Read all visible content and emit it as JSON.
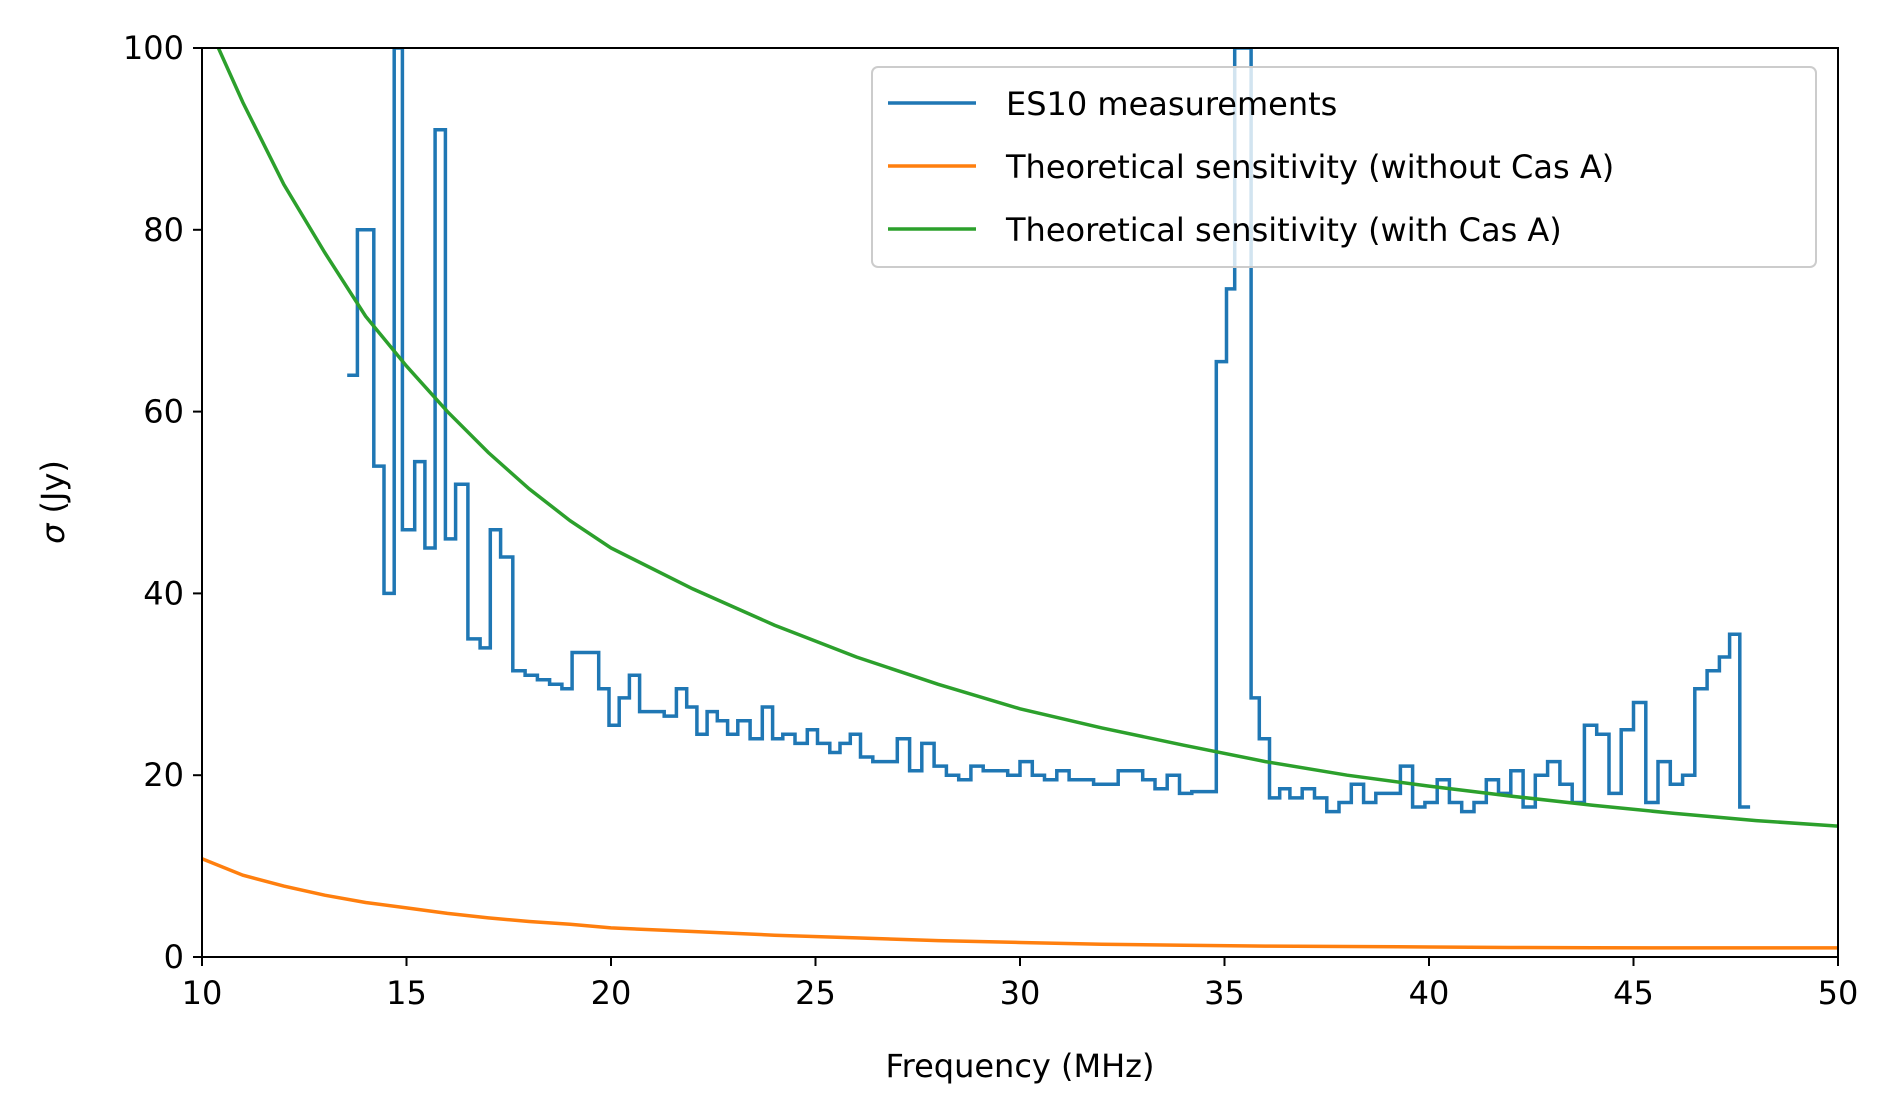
{
  "chart_data": {
    "type": "line",
    "xlabel": "Frequency (MHz)",
    "ylabel_symbol": "σ",
    "ylabel_unit": " (Jy)",
    "xlim": [
      10,
      50
    ],
    "ylim": [
      0,
      100
    ],
    "xticks": [
      10,
      15,
      20,
      25,
      30,
      35,
      40,
      45,
      50
    ],
    "xtick_labels": [
      "10",
      "15",
      "20",
      "25",
      "30",
      "35",
      "40",
      "45",
      "50"
    ],
    "yticks": [
      0,
      20,
      40,
      60,
      80,
      100
    ],
    "ytick_labels": [
      "0",
      "20",
      "40",
      "60",
      "80",
      "100"
    ],
    "grid": false,
    "legend_position": "top-right",
    "series": [
      {
        "name": "ES10 measurements",
        "color": "#1f77b4",
        "style": "step",
        "x": [
          13.55,
          13.8,
          14.2,
          14.45,
          14.7,
          14.9,
          15.2,
          15.45,
          15.7,
          15.95,
          16.2,
          16.5,
          16.8,
          17.05,
          17.3,
          17.6,
          17.9,
          18.2,
          18.5,
          18.8,
          19.05,
          19.35,
          19.7,
          19.95,
          20.2,
          20.45,
          20.7,
          21.0,
          21.3,
          21.6,
          21.85,
          22.1,
          22.35,
          22.6,
          22.85,
          23.1,
          23.4,
          23.7,
          23.95,
          24.2,
          24.5,
          24.8,
          25.05,
          25.35,
          25.6,
          25.85,
          26.1,
          26.4,
          26.7,
          27.0,
          27.3,
          27.6,
          27.9,
          28.2,
          28.5,
          28.8,
          29.1,
          29.4,
          29.7,
          30.0,
          30.3,
          30.6,
          30.9,
          31.2,
          31.5,
          31.8,
          32.1,
          32.4,
          32.7,
          33.0,
          33.3,
          33.6,
          33.9,
          34.2,
          34.5,
          34.8,
          35.05,
          35.25,
          35.45,
          35.65,
          35.85,
          36.1,
          36.35,
          36.6,
          36.9,
          37.2,
          37.5,
          37.8,
          38.1,
          38.4,
          38.7,
          39.0,
          39.3,
          39.6,
          39.9,
          40.2,
          40.5,
          40.8,
          41.1,
          41.4,
          41.7,
          42.0,
          42.3,
          42.6,
          42.9,
          43.2,
          43.5,
          43.8,
          44.1,
          44.4,
          44.7,
          45.0,
          45.3,
          45.6,
          45.9,
          46.2,
          46.5,
          46.8,
          47.1,
          47.35,
          47.6
        ],
        "y": [
          64,
          80,
          54,
          40,
          100,
          47,
          54.5,
          45,
          91,
          46,
          52,
          35,
          34,
          47,
          44,
          31.5,
          31,
          30.5,
          30,
          29.5,
          33.5,
          33.5,
          29.5,
          25.5,
          28.5,
          31,
          27,
          27,
          26.5,
          29.5,
          27.5,
          24.5,
          27,
          26,
          24.5,
          26,
          24,
          27.5,
          24,
          24.5,
          23.5,
          25,
          23.5,
          22.5,
          23.5,
          24.5,
          22,
          21.5,
          21.5,
          24,
          20.5,
          23.5,
          21,
          20,
          19.5,
          21,
          20.5,
          20.5,
          20,
          21.5,
          20,
          19.5,
          20.5,
          19.5,
          19.5,
          19,
          19,
          20.5,
          20.5,
          19.5,
          18.5,
          20,
          18,
          18.2,
          18.2,
          65.5,
          73.5,
          100,
          100,
          28.5,
          24,
          17.5,
          18.5,
          17.5,
          18.5,
          17.5,
          16,
          17,
          19,
          17,
          18,
          18,
          21,
          16.5,
          17,
          19.5,
          17,
          16,
          17,
          19.5,
          18,
          20.5,
          16.5,
          20,
          21.5,
          19,
          17,
          25.5,
          24.5,
          18,
          25,
          28,
          17,
          21.5,
          19,
          20,
          29.5,
          31.5,
          33,
          35.5,
          16.5
        ]
      },
      {
        "name": "Theoretical sensitivity (without Cas A)",
        "color": "#ff7f0e",
        "style": "line",
        "x": [
          10,
          11,
          12,
          13,
          14,
          15,
          16,
          17,
          18,
          19,
          20,
          22,
          24,
          26,
          28,
          30,
          32,
          34,
          36,
          38,
          40,
          42,
          44,
          46,
          48,
          50
        ],
        "y": [
          10.8,
          9.0,
          7.8,
          6.8,
          6.0,
          5.4,
          4.8,
          4.3,
          3.9,
          3.6,
          3.2,
          2.8,
          2.4,
          2.1,
          1.8,
          1.6,
          1.4,
          1.3,
          1.2,
          1.15,
          1.1,
          1.05,
          1.02,
          1.0,
          1.0,
          1.0
        ]
      },
      {
        "name": "Theoretical sensitivity (with Cas A)",
        "color": "#2ca02c",
        "style": "line",
        "x": [
          10.4,
          11,
          12,
          13,
          14,
          15,
          16,
          17,
          18,
          19,
          20,
          22,
          24,
          26,
          28,
          30,
          32,
          34,
          36,
          38,
          40,
          42,
          44,
          46,
          48,
          50
        ],
        "y": [
          100,
          94,
          85,
          77.5,
          70.5,
          65,
          60,
          55.5,
          51.5,
          48,
          45,
          40.5,
          36.5,
          33,
          30,
          27.3,
          25.2,
          23.3,
          21.5,
          20,
          18.8,
          17.7,
          16.7,
          15.8,
          15,
          14.4
        ]
      }
    ]
  }
}
